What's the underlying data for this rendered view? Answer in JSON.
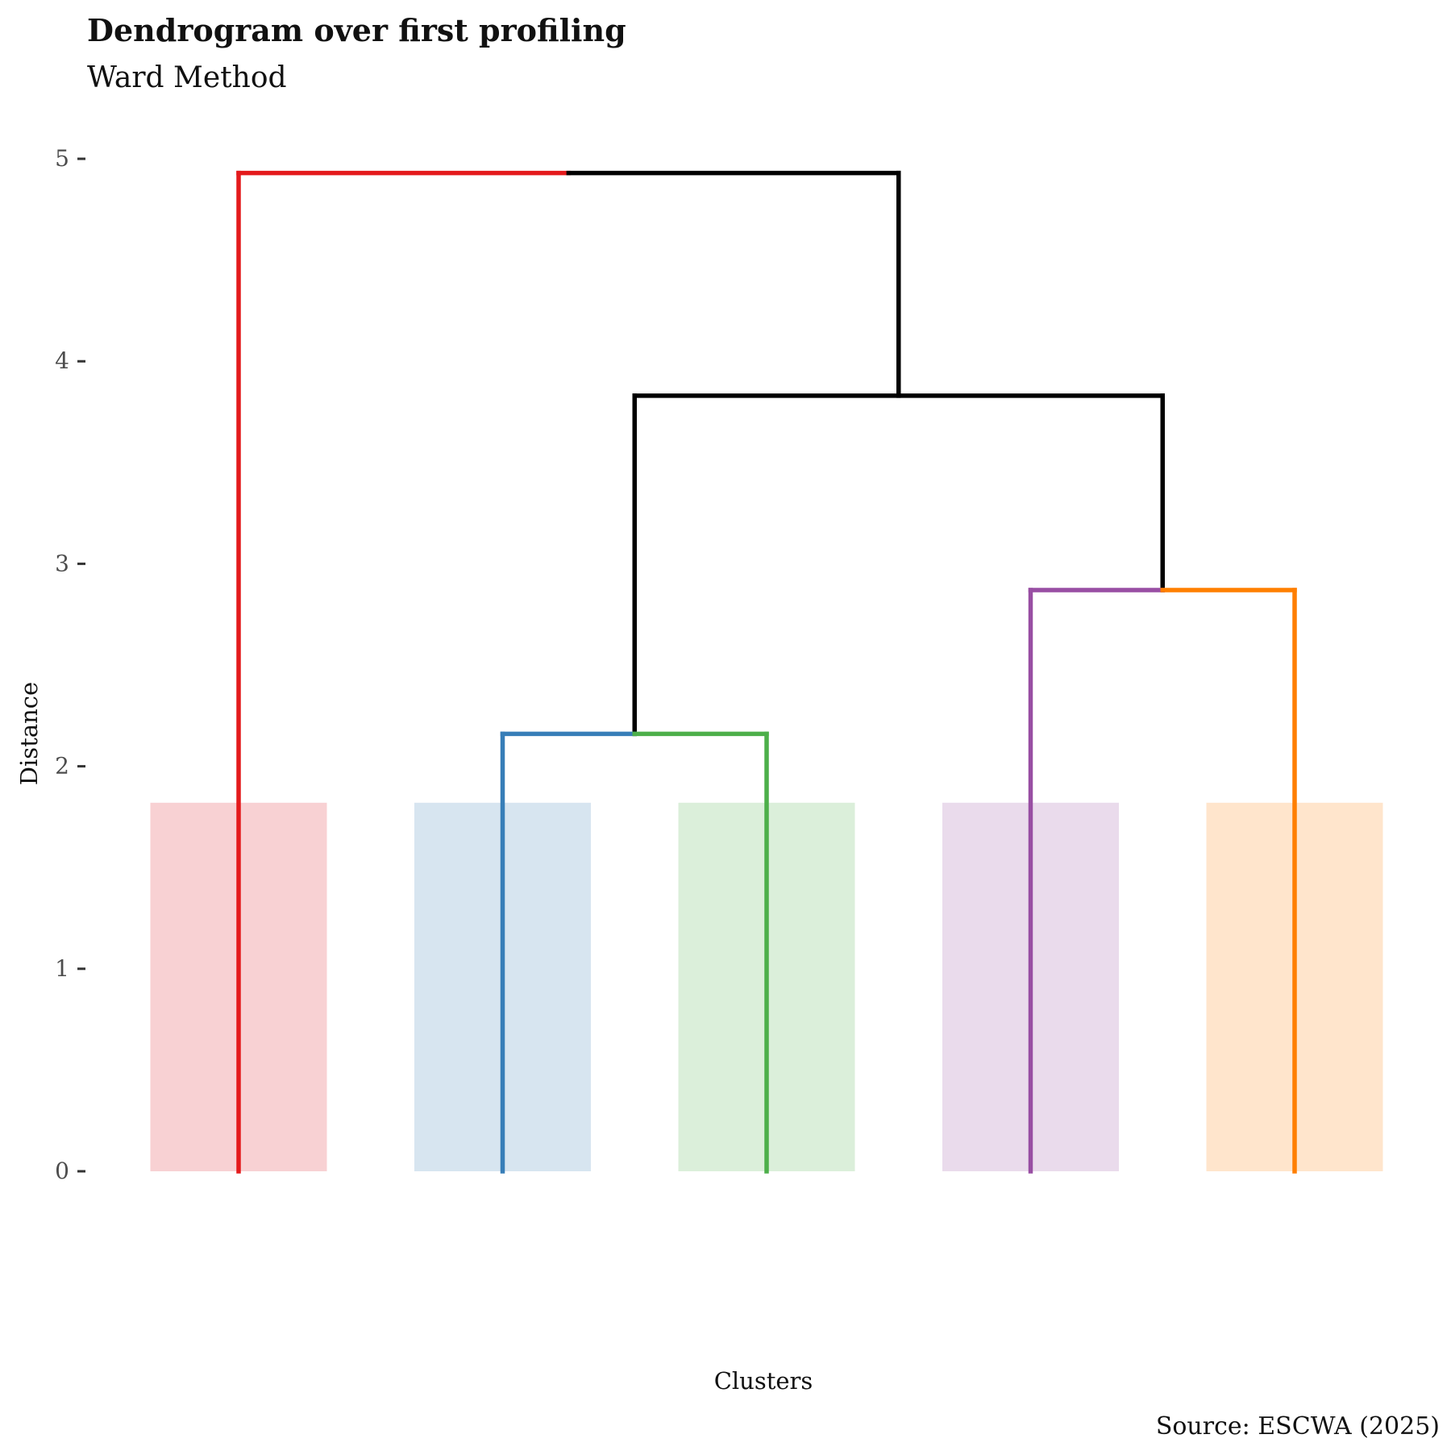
{
  "chart_data": {
    "type": "dendrogram",
    "title": "Dendrogram over first profiling",
    "subtitle": "Ward Method",
    "xlabel": "Clusters",
    "ylabel": "Distance",
    "caption": "Source: ESCWA (2025)",
    "ylim": [
      -0.25,
      5.15
    ],
    "yticks": [
      0,
      1,
      2,
      3,
      4,
      5
    ],
    "grid": false,
    "leaves": [
      {
        "position": 1,
        "color": "#E41A1C",
        "band_color": "#F8D1D3"
      },
      {
        "position": 2,
        "color": "#377EB8",
        "band_color": "#D7E5F0"
      },
      {
        "position": 3,
        "color": "#4DAF4A",
        "band_color": "#DBEFDA"
      },
      {
        "position": 4,
        "color": "#984EA3",
        "band_color": "#EADBEC"
      },
      {
        "position": 5,
        "color": "#FF7F00",
        "band_color": "#FFE5CC"
      }
    ],
    "cluster_band_height": 1.82,
    "segments": [
      {
        "x1": 1,
        "y1": 0,
        "x2": 1,
        "y2": 4.93,
        "color": "#E41A1C"
      },
      {
        "x1": 1,
        "y1": 4.93,
        "x2": 2.25,
        "y2": 4.93,
        "color": "#E41A1C"
      },
      {
        "x1": 2.25,
        "y1": 4.93,
        "x2": 3.5,
        "y2": 4.93,
        "color": "#000000"
      },
      {
        "x1": 3.5,
        "y1": 4.93,
        "x2": 3.5,
        "y2": 3.83,
        "color": "#000000"
      },
      {
        "x1": 2.5,
        "y1": 3.83,
        "x2": 4.5,
        "y2": 3.83,
        "color": "#000000"
      },
      {
        "x1": 2.5,
        "y1": 3.83,
        "x2": 2.5,
        "y2": 2.16,
        "color": "#000000"
      },
      {
        "x1": 4.5,
        "y1": 3.83,
        "x2": 4.5,
        "y2": 2.87,
        "color": "#000000"
      },
      {
        "x1": 2,
        "y1": 2.16,
        "x2": 2.5,
        "y2": 2.16,
        "color": "#377EB8"
      },
      {
        "x1": 2,
        "y1": 2.16,
        "x2": 2,
        "y2": 0,
        "color": "#377EB8"
      },
      {
        "x1": 2.5,
        "y1": 2.16,
        "x2": 3,
        "y2": 2.16,
        "color": "#4DAF4A"
      },
      {
        "x1": 3,
        "y1": 2.16,
        "x2": 3,
        "y2": 0,
        "color": "#4DAF4A"
      },
      {
        "x1": 4,
        "y1": 2.87,
        "x2": 4.5,
        "y2": 2.87,
        "color": "#984EA3"
      },
      {
        "x1": 4,
        "y1": 2.87,
        "x2": 4,
        "y2": 0,
        "color": "#984EA3"
      },
      {
        "x1": 4.5,
        "y1": 2.87,
        "x2": 5,
        "y2": 2.87,
        "color": "#FF7F00"
      },
      {
        "x1": 5,
        "y1": 2.87,
        "x2": 5,
        "y2": 0,
        "color": "#FF7F00"
      }
    ]
  }
}
